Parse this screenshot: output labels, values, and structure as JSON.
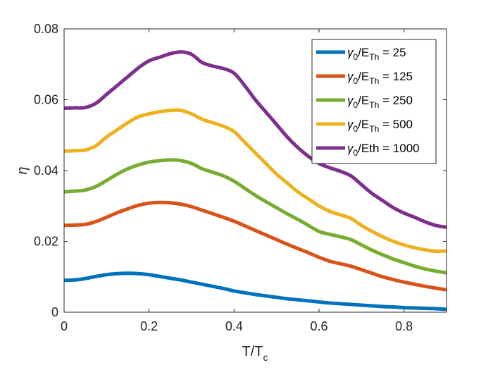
{
  "chart_data": {
    "type": "line",
    "title": "",
    "xlabel": {
      "main": "T/T",
      "sub": "c"
    },
    "ylabel": "η",
    "xlim": [
      0,
      0.9
    ],
    "ylim": [
      0,
      0.08
    ],
    "x_ticks": [
      0,
      0.2,
      0.4,
      0.6,
      0.8
    ],
    "x_tick_labels": [
      "0",
      "0.2",
      "0.4",
      "0.6",
      "0.8"
    ],
    "y_ticks": [
      0,
      0.02,
      0.04,
      0.06,
      0.08
    ],
    "y_tick_labels": [
      "0",
      "0.02",
      "0.04",
      "0.06",
      "0.08"
    ],
    "grid": false,
    "legend_position": "top-right",
    "x": [
      0,
      0.025,
      0.05,
      0.075,
      0.1,
      0.125,
      0.15,
      0.175,
      0.2,
      0.225,
      0.25,
      0.275,
      0.3,
      0.325,
      0.35,
      0.375,
      0.4,
      0.425,
      0.45,
      0.475,
      0.5,
      0.525,
      0.55,
      0.575,
      0.6,
      0.625,
      0.65,
      0.675,
      0.7,
      0.725,
      0.75,
      0.775,
      0.8,
      0.825,
      0.85,
      0.875,
      0.9
    ],
    "series": [
      {
        "legend": {
          "pre": "γ",
          "pre_sub": "0",
          "mid": "/E",
          "mid_sub": "Th",
          "post": " = 25"
        },
        "color": "#0072BD",
        "values": [
          0.009,
          0.0091,
          0.0095,
          0.0101,
          0.0106,
          0.0109,
          0.011,
          0.0109,
          0.0106,
          0.0101,
          0.0096,
          0.0091,
          0.0085,
          0.0079,
          0.0073,
          0.0067,
          0.006,
          0.0055,
          0.005,
          0.0046,
          0.0042,
          0.0038,
          0.0035,
          0.0032,
          0.0029,
          0.0026,
          0.0024,
          0.0022,
          0.002,
          0.0018,
          0.0016,
          0.0015,
          0.0013,
          0.0012,
          0.0011,
          0.001,
          0.0008
        ]
      },
      {
        "legend": {
          "pre": "γ",
          "pre_sub": "0",
          "mid": "/E",
          "mid_sub": "Th",
          "post": " = 125"
        },
        "color": "#D95319",
        "values": [
          0.0245,
          0.0246,
          0.0248,
          0.0256,
          0.0268,
          0.0281,
          0.0292,
          0.0302,
          0.0308,
          0.031,
          0.0309,
          0.0305,
          0.0298,
          0.0288,
          0.0278,
          0.0268,
          0.0257,
          0.0244,
          0.0231,
          0.0218,
          0.0205,
          0.0192,
          0.018,
          0.0168,
          0.0155,
          0.0144,
          0.0137,
          0.013,
          0.012,
          0.011,
          0.01,
          0.0092,
          0.0085,
          0.0079,
          0.0073,
          0.0068,
          0.0063
        ]
      },
      {
        "legend": {
          "pre": "γ",
          "pre_sub": "0",
          "mid": "/E",
          "mid_sub": "Th",
          "post": " = 250"
        },
        "color": "#77AC30",
        "values": [
          0.034,
          0.0342,
          0.0345,
          0.0355,
          0.0372,
          0.039,
          0.0405,
          0.0416,
          0.0424,
          0.0428,
          0.043,
          0.0428,
          0.042,
          0.0405,
          0.0395,
          0.0385,
          0.037,
          0.035,
          0.033,
          0.0312,
          0.0295,
          0.0278,
          0.0262,
          0.0245,
          0.0228,
          0.022,
          0.0213,
          0.0205,
          0.019,
          0.0175,
          0.0162,
          0.015,
          0.014,
          0.013,
          0.0122,
          0.0116,
          0.0111
        ]
      },
      {
        "legend": {
          "pre": "γ",
          "pre_sub": "0",
          "mid": "/E",
          "mid_sub": "Th",
          "post": " = 500"
        },
        "color": "#EDB120",
        "values": [
          0.0455,
          0.0456,
          0.0458,
          0.047,
          0.0495,
          0.0515,
          0.0535,
          0.0552,
          0.056,
          0.0566,
          0.057,
          0.057,
          0.056,
          0.0545,
          0.0535,
          0.0525,
          0.051,
          0.048,
          0.045,
          0.042,
          0.039,
          0.0365,
          0.034,
          0.032,
          0.03,
          0.0285,
          0.0275,
          0.0265,
          0.0245,
          0.0228,
          0.0213,
          0.02,
          0.019,
          0.0182,
          0.0176,
          0.0172,
          0.0173
        ]
      },
      {
        "legend": {
          "pre": "γ",
          "pre_sub": "0",
          "mid": "/Eth",
          "mid_sub": "",
          "post": " = 1000"
        },
        "color": "#7E2F8E",
        "values": [
          0.0576,
          0.0577,
          0.0578,
          0.059,
          0.0615,
          0.064,
          0.0665,
          0.069,
          0.071,
          0.072,
          0.073,
          0.0735,
          0.0728,
          0.0705,
          0.0695,
          0.0688,
          0.0675,
          0.064,
          0.06,
          0.0565,
          0.053,
          0.0495,
          0.0465,
          0.044,
          0.042,
          0.0408,
          0.0398,
          0.0385,
          0.036,
          0.0335,
          0.0315,
          0.0295,
          0.028,
          0.0268,
          0.0255,
          0.0245,
          0.024
        ]
      }
    ]
  }
}
